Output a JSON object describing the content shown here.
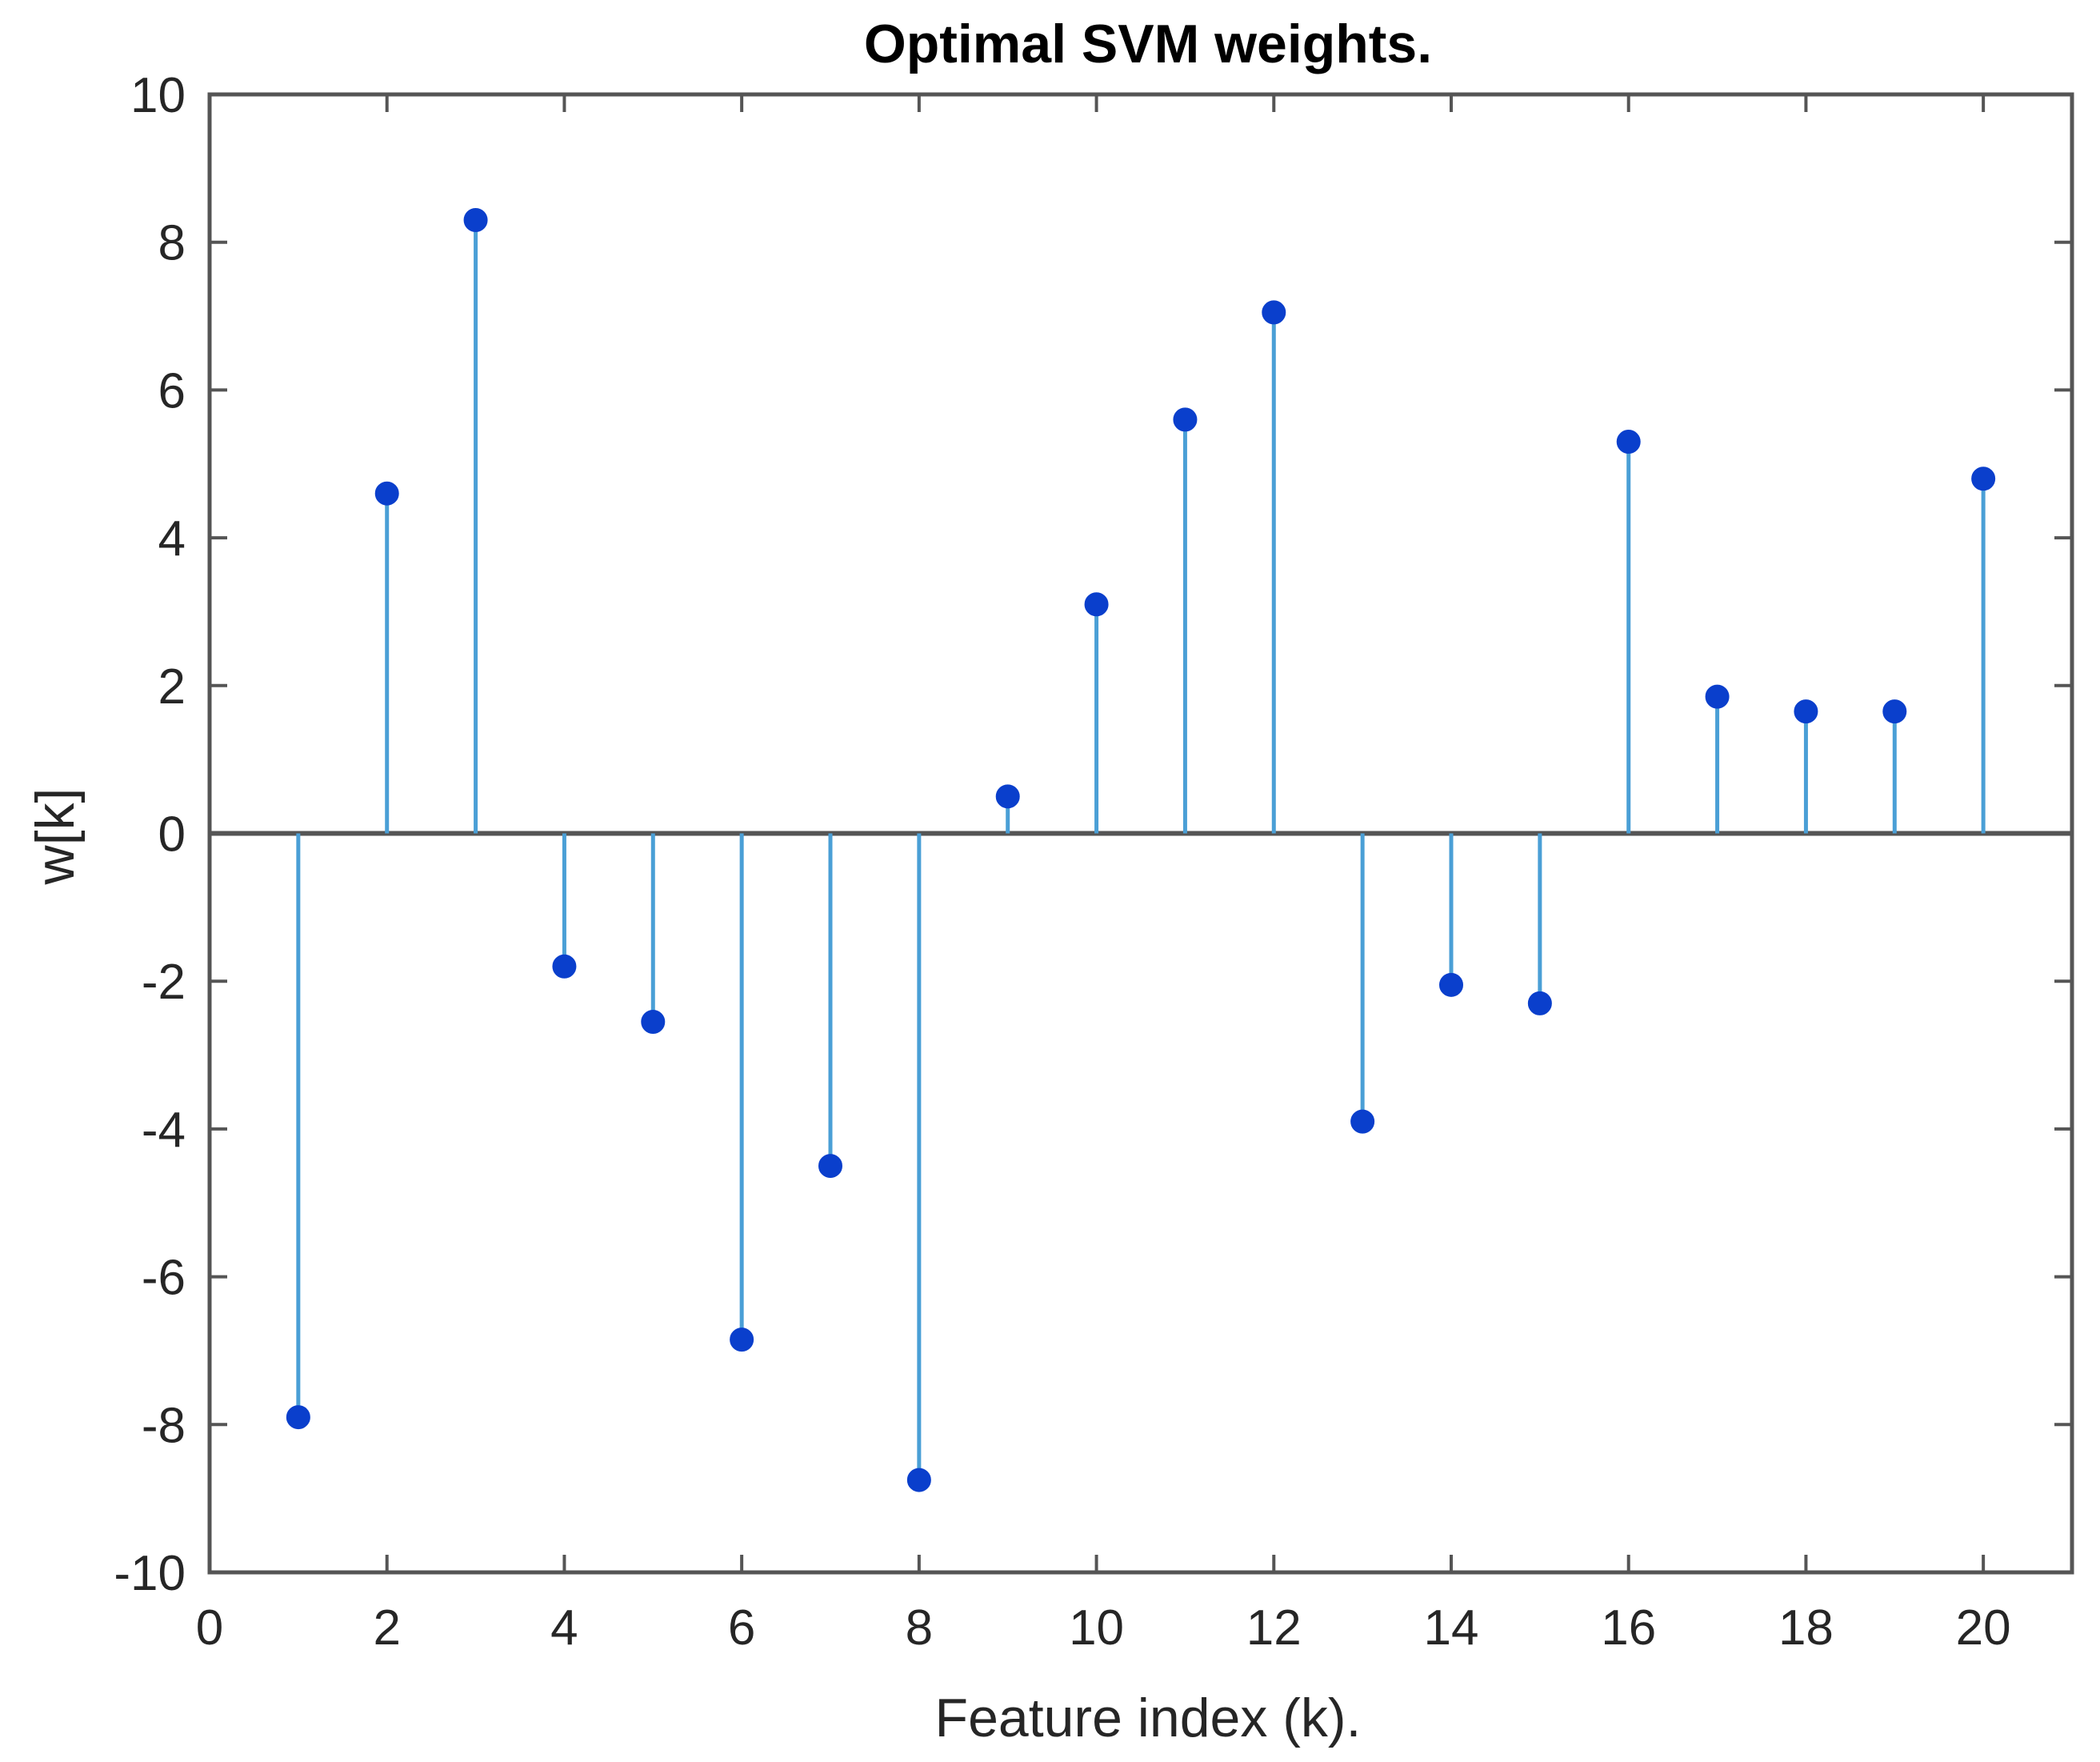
{
  "chart_data": {
    "type": "stem",
    "title": "Optimal SVM weights.",
    "xlabel": "Feature index (k).",
    "ylabel": "w[k]",
    "xlim": [
      0,
      21
    ],
    "ylim": [
      -10,
      10
    ],
    "xticks": [
      0,
      2,
      4,
      6,
      8,
      10,
      12,
      14,
      16,
      18,
      20
    ],
    "yticks": [
      -10,
      -8,
      -6,
      -4,
      -2,
      0,
      2,
      4,
      6,
      8,
      10
    ],
    "grid": false,
    "colors": {
      "stem": "#4a9fd6",
      "marker": "#0a3fcc",
      "axis": "#555555",
      "baseline": "#555555"
    },
    "series": [
      {
        "name": "w",
        "x": [
          1,
          2,
          3,
          4,
          5,
          6,
          7,
          8,
          9,
          10,
          11,
          12,
          13,
          14,
          15,
          16,
          17,
          18,
          19,
          20
        ],
        "values": [
          -7.9,
          4.6,
          8.3,
          -1.8,
          -2.55,
          -6.85,
          -4.5,
          -8.75,
          0.5,
          3.1,
          5.6,
          7.05,
          -3.9,
          -2.05,
          -2.3,
          5.3,
          1.85,
          1.65,
          1.65,
          4.8
        ]
      }
    ]
  }
}
